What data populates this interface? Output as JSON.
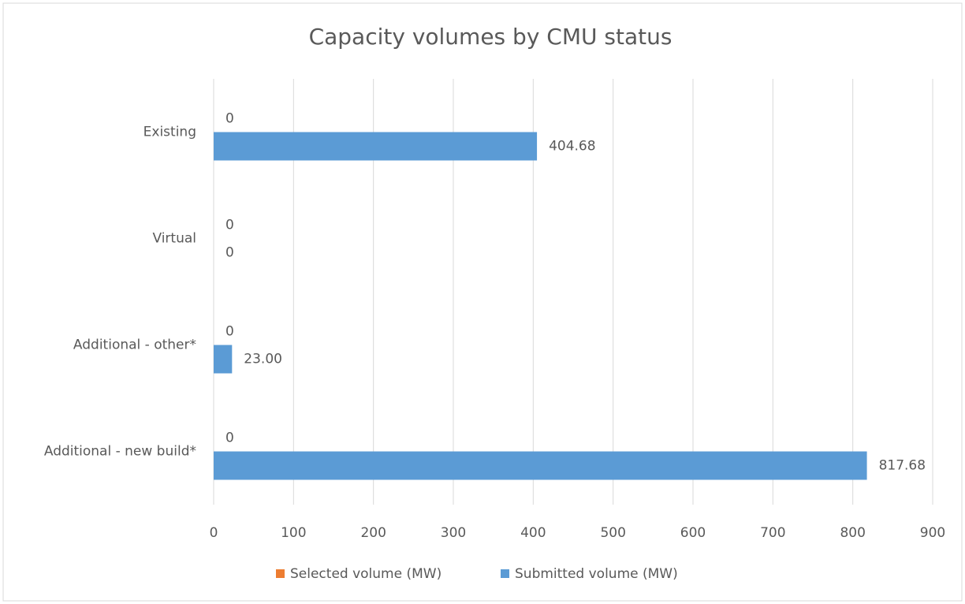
{
  "chart_data": {
    "type": "barh",
    "title": "Capacity volumes by CMU status",
    "categories": [
      "Existing",
      "Virtual",
      "Additional - other*",
      "Additional - new build*"
    ],
    "series": [
      {
        "name": "Selected volume (MW)",
        "color": "#ed7d31",
        "values": [
          0,
          0,
          0,
          0
        ]
      },
      {
        "name": "Submitted volume (MW)",
        "color": "#5b9bd5",
        "values": [
          404.68,
          0,
          23,
          817.68
        ],
        "value_labels": [
          "404.68",
          "0",
          "23.00",
          "817.68"
        ]
      }
    ],
    "xlim": [
      0,
      900
    ],
    "xticks": [
      0,
      100,
      200,
      300,
      400,
      500,
      600,
      700,
      800,
      900
    ],
    "grid": true,
    "legend": "bottom"
  }
}
